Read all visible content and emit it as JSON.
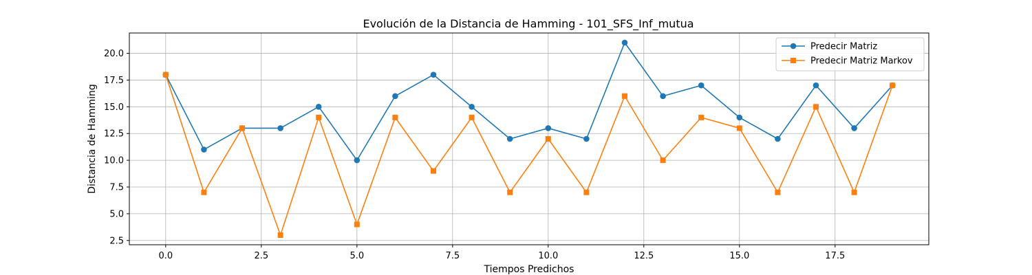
{
  "chart_data": {
    "type": "line",
    "title": "Evolución de la Distancia de Hamming - 101_SFS_Inf_mutua",
    "xlabel": "Tiempos Predichos",
    "ylabel": "Distancia de Hamming",
    "xlim": [
      -0.95,
      19.95
    ],
    "ylim": [
      2.1,
      21.9
    ],
    "xticks": [
      0.0,
      2.5,
      5.0,
      7.5,
      10.0,
      12.5,
      15.0,
      17.5
    ],
    "xtick_labels": [
      "0.0",
      "2.5",
      "5.0",
      "7.5",
      "10.0",
      "12.5",
      "15.0",
      "17.5"
    ],
    "yticks": [
      2.5,
      5.0,
      7.5,
      10.0,
      12.5,
      15.0,
      17.5,
      20.0
    ],
    "ytick_labels": [
      "2.5",
      "5.0",
      "7.5",
      "10.0",
      "12.5",
      "15.0",
      "17.5",
      "20.0"
    ],
    "grid": true,
    "legend_position": "top-right",
    "x": [
      0,
      1,
      2,
      3,
      4,
      5,
      6,
      7,
      8,
      9,
      10,
      11,
      12,
      13,
      14,
      15,
      16,
      17,
      18,
      19
    ],
    "series": [
      {
        "name": "Predecir Matriz",
        "color": "#1f77b4",
        "marker": "circle",
        "values": [
          18,
          11,
          13,
          13,
          15,
          10,
          16,
          18,
          15,
          12,
          13,
          12,
          21,
          16,
          17,
          14,
          12,
          17,
          13,
          17
        ]
      },
      {
        "name": "Predecir Matriz Markov",
        "color": "#ff7f0e",
        "marker": "square",
        "values": [
          18,
          7,
          13,
          3,
          14,
          4,
          14,
          9,
          14,
          7,
          12,
          7,
          16,
          10,
          14,
          13,
          7,
          15,
          7,
          17
        ]
      }
    ]
  }
}
